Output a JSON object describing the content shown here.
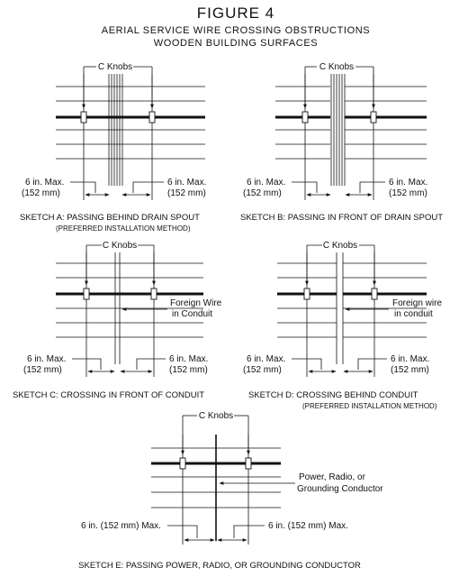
{
  "figure": {
    "title": "FIGURE 4",
    "subtitle_1": "AERIAL SERVICE WIRE CROSSING OBSTRUCTIONS",
    "subtitle_2": "WOODEN BUILDING SURFACES"
  },
  "sketches": {
    "a": {
      "knob_label": "C Knobs",
      "dim_left_1": "6 in. Max.",
      "dim_left_2": "(152 mm)",
      "dim_right_1": "6 in. Max.",
      "dim_right_2": "(152 mm)",
      "caption": "SKETCH A:  PASSING BEHIND DRAIN SPOUT",
      "caption_note": "(PREFERRED INSTALLATION METHOD)"
    },
    "b": {
      "knob_label": "C Knobs",
      "dim_left_1": "6 in. Max.",
      "dim_left_2": "(152 mm)",
      "dim_right_1": "6 in. Max.",
      "dim_right_2": "(152 mm)",
      "caption": "SKETCH B:  PASSING IN FRONT OF DRAIN SPOUT"
    },
    "c": {
      "knob_label": "C Knobs",
      "side_1": "Foreign Wire",
      "side_2": "in Conduit",
      "dim_left_1": "6 in. Max.",
      "dim_left_2": "(152 mm)",
      "dim_right_1": "6 in. Max.",
      "dim_right_2": "(152 mm)",
      "caption": "SKETCH C:  CROSSING IN FRONT OF CONDUIT"
    },
    "d": {
      "knob_label": "C Knobs",
      "side_1": "Foreign wire",
      "side_2": "in conduit",
      "dim_left_1": "6 in. Max.",
      "dim_left_2": "(152 mm)",
      "dim_right_1": "6 in. Max.",
      "dim_right_2": "(152 mm)",
      "caption": "SKETCH D:  CROSSING BEHIND CONDUIT",
      "caption_note": "(PREFERRED INSTALLATION METHOD)"
    },
    "e": {
      "knob_label": "C Knobs",
      "side_1": "Power, Radio, or",
      "side_2": "Grounding Conductor",
      "dim_left": "6 in. (152 mm) Max.",
      "dim_right": "6 in. (152 mm) Max.",
      "caption": "SKETCH E:  PASSING POWER, RADIO, OR GROUNDING CONDUCTOR"
    }
  }
}
